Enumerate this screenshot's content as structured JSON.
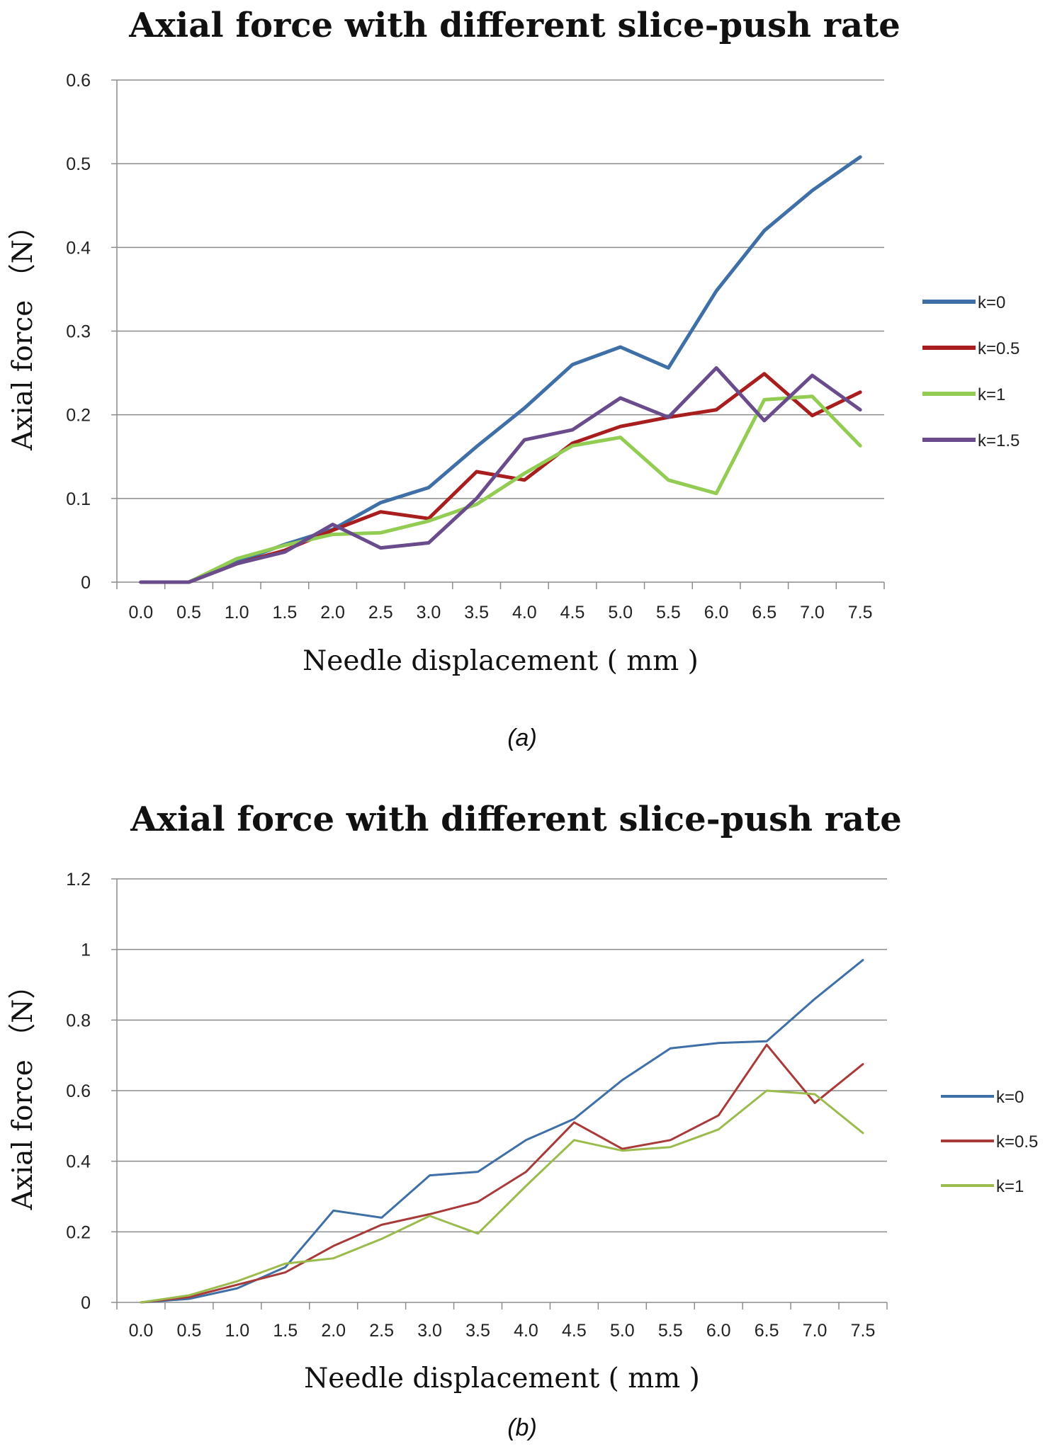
{
  "chart_data": [
    {
      "type": "line",
      "title": "Axial force with different slice-push rate",
      "xlabel": "Needle displacement ( mm )",
      "ylabel": "Axial force （N）",
      "caption": "(a)",
      "ylim": [
        0,
        0.6
      ],
      "yticks": [
        "0",
        "0.1",
        "0.2",
        "0.3",
        "0.4",
        "0.5",
        "0.6"
      ],
      "ytick_values": [
        0,
        0.1,
        0.2,
        0.3,
        0.4,
        0.5,
        0.6
      ],
      "categories": [
        "0.0",
        "0.5",
        "1.0",
        "1.5",
        "2.0",
        "2.5",
        "3.0",
        "3.5",
        "4.0",
        "4.5",
        "5.0",
        "5.5",
        "6.0",
        "6.5",
        "7.0",
        "7.5"
      ],
      "legend_position": "right",
      "series": [
        {
          "name": "k=0",
          "color": "#3e6fa6",
          "values": [
            0,
            0,
            0.024,
            0.045,
            0.063,
            0.095,
            0.113,
            0.162,
            0.208,
            0.26,
            0.281,
            0.256,
            0.348,
            0.42,
            0.468,
            0.508
          ]
        },
        {
          "name": "k=0.5",
          "color": "#a81d1d",
          "values": [
            0,
            0,
            0.022,
            0.038,
            0.062,
            0.084,
            0.076,
            0.132,
            0.122,
            0.166,
            0.186,
            0.197,
            0.206,
            0.249,
            0.199,
            0.227
          ]
        },
        {
          "name": "k=1",
          "color": "#92cc52",
          "values": [
            0,
            0,
            0.028,
            0.044,
            0.057,
            0.059,
            0.073,
            0.093,
            0.13,
            0.163,
            0.173,
            0.122,
            0.106,
            0.218,
            0.222,
            0.163
          ]
        },
        {
          "name": "k=1.5",
          "color": "#6a4c8d",
          "values": [
            0,
            0,
            0.022,
            0.036,
            0.069,
            0.041,
            0.047,
            0.1,
            0.17,
            0.182,
            0.22,
            0.197,
            0.256,
            0.193,
            0.247,
            0.206
          ]
        }
      ]
    },
    {
      "type": "line",
      "title": "Axial force with different slice-push rate",
      "xlabel": "Needle displacement ( mm )",
      "ylabel": "Axial force （N）",
      "caption": "(b)",
      "ylim": [
        0,
        1.2
      ],
      "yticks": [
        "0",
        "0.2",
        "0.4",
        "0.6",
        "0.8",
        "1",
        "1.2"
      ],
      "ytick_values": [
        0,
        0.2,
        0.4,
        0.6,
        0.8,
        1.0,
        1.2
      ],
      "categories": [
        "0.0",
        "0.5",
        "1.0",
        "1.5",
        "2.0",
        "2.5",
        "3.0",
        "3.5",
        "4.0",
        "4.5",
        "5.0",
        "5.5",
        "6.0",
        "6.5",
        "7.0",
        "7.5"
      ],
      "legend_position": "right",
      "series": [
        {
          "name": "k=0",
          "color": "#3e6fa6",
          "values": [
            0,
            0.01,
            0.04,
            0.1,
            0.26,
            0.24,
            0.36,
            0.37,
            0.46,
            0.52,
            0.63,
            0.72,
            0.735,
            0.74,
            0.86,
            0.97
          ]
        },
        {
          "name": "k=0.5",
          "color": "#a83a3a",
          "values": [
            0,
            0.015,
            0.05,
            0.085,
            0.16,
            0.22,
            0.25,
            0.285,
            0.37,
            0.51,
            0.435,
            0.46,
            0.53,
            0.73,
            0.565,
            0.675
          ]
        },
        {
          "name": "k=1",
          "color": "#9cbb4e",
          "values": [
            0,
            0.02,
            0.06,
            0.11,
            0.125,
            0.18,
            0.245,
            0.195,
            0.33,
            0.46,
            0.43,
            0.44,
            0.49,
            0.6,
            0.59,
            0.48
          ]
        }
      ]
    }
  ]
}
